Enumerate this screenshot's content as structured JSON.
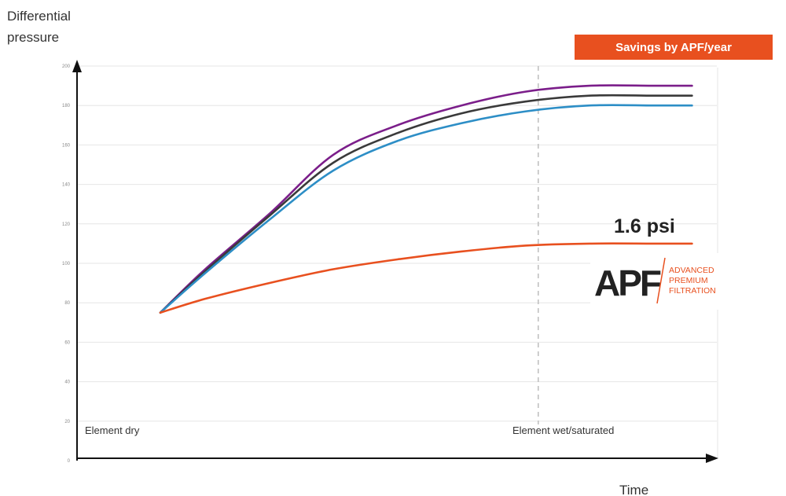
{
  "chart_data": {
    "type": "line",
    "ylabel": "Differential\npressure",
    "xlabel": "Time",
    "ylim": [
      0,
      200
    ],
    "yticks": [
      "0",
      "20",
      "40",
      "60",
      "80",
      "100",
      "120",
      "140",
      "160",
      "180",
      "200"
    ],
    "xlim": [
      0,
      10
    ],
    "grid": true,
    "annotations": {
      "element_dry": "Element dry",
      "element_wet": "Element wet/saturated",
      "wet_x": 7.2,
      "savings": "Savings by APF/year",
      "value": "1.6 psi"
    },
    "series": [
      {
        "color": "#7b1e8a",
        "x": [
          1.3,
          2.0,
          3.0,
          4.0,
          5.0,
          6.0,
          7.0,
          8.0,
          9.0,
          9.6
        ],
        "values": [
          75,
          97,
          125,
          155,
          170,
          180,
          187,
          190,
          190,
          190
        ]
      },
      {
        "color": "#3a3a3a",
        "x": [
          1.3,
          2.0,
          3.0,
          4.0,
          5.0,
          6.0,
          7.0,
          8.0,
          9.0,
          9.6
        ],
        "values": [
          75,
          96,
          124,
          151,
          166,
          176,
          182,
          185,
          185,
          185
        ]
      },
      {
        "color": "#2d8ec6",
        "x": [
          1.3,
          2.0,
          3.0,
          4.0,
          5.0,
          6.0,
          7.0,
          8.0,
          9.0,
          9.6
        ],
        "values": [
          75,
          95,
          122,
          147,
          162,
          171,
          177,
          180,
          180,
          180
        ]
      },
      {
        "color": "#e8501f",
        "x": [
          1.3,
          2.0,
          3.0,
          4.0,
          5.0,
          6.0,
          7.0,
          8.0,
          9.0,
          9.6
        ],
        "values": [
          75,
          82,
          90,
          97,
          102,
          106,
          109,
          110,
          110,
          110
        ]
      }
    ]
  },
  "logo": {
    "mark": "APF",
    "line1": "ADVANCED",
    "line2": "PREMIUM",
    "line3": "FILTRATION"
  },
  "colors": {
    "accent": "#e8501f"
  }
}
